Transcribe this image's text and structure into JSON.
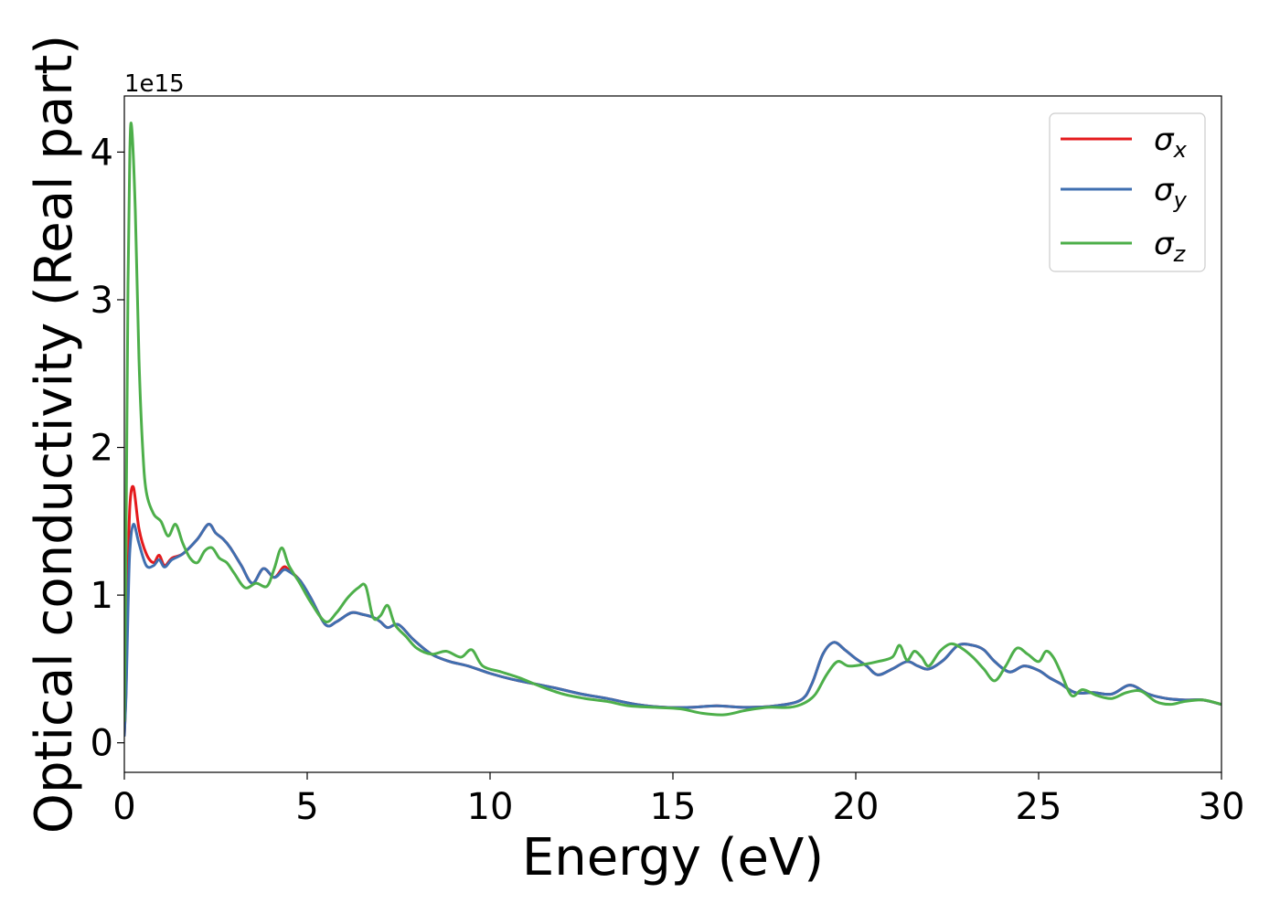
{
  "chart_data": {
    "type": "line",
    "xlabel": "Energy (eV)",
    "ylabel": "Optical conductivity (Real part)",
    "y_offset_label": "1e15",
    "y_scale": 1000000000000000.0,
    "xlim": [
      0,
      30
    ],
    "ylim": [
      -0.2,
      4.38
    ],
    "x_ticks": [
      0,
      5,
      10,
      15,
      20,
      25,
      30
    ],
    "y_ticks": [
      0,
      1,
      2,
      3,
      4
    ],
    "grid": false,
    "legend_position": "top-right",
    "series": [
      {
        "name": "σx",
        "symbol": "σ",
        "subscript": "x",
        "color": "#e41a1c",
        "x": [
          0,
          0.05,
          0.1,
          0.15,
          0.25,
          0.4,
          0.6,
          0.8,
          0.95,
          1.1,
          1.3,
          1.6,
          2.0,
          2.3,
          2.5,
          2.7,
          2.9,
          3.2,
          3.5,
          3.8,
          4.1,
          4.35,
          4.5,
          4.8,
          5.1,
          5.5,
          5.8,
          6.2,
          6.5,
          6.8,
          7.0,
          7.2,
          7.5,
          7.9,
          8.4,
          8.9,
          9.4,
          10,
          10.6,
          11.2,
          11.8,
          12.5,
          13.2,
          14.0,
          14.8,
          15.5,
          16.2,
          17.0,
          17.8,
          18.5,
          18.8,
          19.1,
          19.4,
          19.7,
          20.0,
          20.3,
          20.6,
          21.0,
          21.4,
          21.7,
          22.0,
          22.4,
          22.8,
          23.2,
          23.5,
          23.8,
          24.2,
          24.6,
          25.0,
          25.3,
          25.6,
          26.0,
          26.5,
          27.0,
          27.5,
          28.0,
          28.5,
          29.0,
          29.5,
          30.0
        ],
        "y": [
          0.05,
          0.4,
          1.1,
          1.6,
          1.73,
          1.45,
          1.28,
          1.22,
          1.27,
          1.2,
          1.25,
          1.28,
          1.38,
          1.48,
          1.42,
          1.38,
          1.32,
          1.2,
          1.08,
          1.18,
          1.12,
          1.19,
          1.17,
          1.1,
          0.98,
          0.8,
          0.82,
          0.88,
          0.87,
          0.85,
          0.82,
          0.78,
          0.8,
          0.7,
          0.6,
          0.55,
          0.52,
          0.47,
          0.43,
          0.4,
          0.37,
          0.33,
          0.3,
          0.26,
          0.24,
          0.24,
          0.25,
          0.24,
          0.25,
          0.29,
          0.4,
          0.6,
          0.68,
          0.63,
          0.57,
          0.52,
          0.46,
          0.5,
          0.55,
          0.52,
          0.5,
          0.56,
          0.66,
          0.66,
          0.63,
          0.55,
          0.48,
          0.52,
          0.49,
          0.44,
          0.4,
          0.34,
          0.34,
          0.33,
          0.39,
          0.33,
          0.3,
          0.29,
          0.29,
          0.26
        ]
      },
      {
        "name": "σy",
        "symbol": "σ",
        "subscript": "y",
        "color": "#3f6fb0",
        "x": [
          0,
          0.05,
          0.1,
          0.15,
          0.25,
          0.4,
          0.6,
          0.8,
          0.95,
          1.1,
          1.3,
          1.6,
          2.0,
          2.3,
          2.5,
          2.7,
          2.9,
          3.2,
          3.5,
          3.8,
          4.1,
          4.35,
          4.5,
          4.8,
          5.1,
          5.5,
          5.8,
          6.2,
          6.5,
          6.8,
          7.0,
          7.2,
          7.5,
          7.9,
          8.4,
          8.9,
          9.4,
          10,
          10.6,
          11.2,
          11.8,
          12.5,
          13.2,
          14.0,
          14.8,
          15.5,
          16.2,
          17.0,
          17.8,
          18.5,
          18.8,
          19.1,
          19.4,
          19.7,
          20.0,
          20.3,
          20.6,
          21.0,
          21.4,
          21.7,
          22.0,
          22.4,
          22.8,
          23.2,
          23.5,
          23.8,
          24.2,
          24.6,
          25.0,
          25.3,
          25.6,
          26.0,
          26.5,
          27.0,
          27.5,
          28.0,
          28.5,
          29.0,
          29.5,
          30.0
        ],
        "y": [
          0.05,
          0.35,
          0.9,
          1.3,
          1.48,
          1.35,
          1.2,
          1.2,
          1.24,
          1.19,
          1.24,
          1.28,
          1.38,
          1.48,
          1.42,
          1.38,
          1.32,
          1.2,
          1.08,
          1.18,
          1.12,
          1.17,
          1.16,
          1.1,
          0.98,
          0.8,
          0.82,
          0.88,
          0.87,
          0.85,
          0.82,
          0.78,
          0.8,
          0.7,
          0.6,
          0.55,
          0.52,
          0.47,
          0.43,
          0.4,
          0.37,
          0.33,
          0.3,
          0.26,
          0.24,
          0.24,
          0.25,
          0.24,
          0.25,
          0.29,
          0.4,
          0.6,
          0.68,
          0.63,
          0.57,
          0.52,
          0.46,
          0.5,
          0.55,
          0.52,
          0.5,
          0.56,
          0.66,
          0.66,
          0.63,
          0.55,
          0.48,
          0.52,
          0.49,
          0.44,
          0.4,
          0.34,
          0.34,
          0.33,
          0.39,
          0.33,
          0.3,
          0.29,
          0.29,
          0.26
        ]
      },
      {
        "name": "σz",
        "symbol": "σ",
        "subscript": "z",
        "color": "#4daf4a",
        "x": [
          0,
          0.05,
          0.1,
          0.15,
          0.2,
          0.3,
          0.4,
          0.5,
          0.6,
          0.8,
          1.0,
          1.2,
          1.4,
          1.6,
          1.8,
          2.0,
          2.2,
          2.4,
          2.6,
          2.8,
          3.0,
          3.3,
          3.6,
          3.9,
          4.1,
          4.3,
          4.5,
          4.8,
          5.1,
          5.5,
          5.8,
          6.1,
          6.4,
          6.6,
          6.8,
          7.0,
          7.2,
          7.4,
          7.7,
          8.0,
          8.4,
          8.8,
          9.2,
          9.5,
          9.8,
          10.3,
          10.8,
          11.4,
          12.0,
          12.6,
          13.2,
          13.8,
          14.5,
          15.2,
          15.8,
          16.4,
          17.0,
          17.6,
          18.2,
          18.6,
          18.9,
          19.2,
          19.5,
          19.8,
          20.2,
          20.6,
          21.0,
          21.2,
          21.4,
          21.6,
          21.8,
          22.0,
          22.3,
          22.6,
          22.9,
          23.2,
          23.5,
          23.8,
          24.1,
          24.4,
          24.7,
          25.0,
          25.2,
          25.4,
          25.6,
          25.9,
          26.2,
          26.6,
          27.0,
          27.4,
          27.8,
          28.2,
          28.6,
          29.0,
          29.5,
          30.0
        ],
        "y": [
          0.15,
          1.5,
          3.1,
          4.0,
          4.17,
          3.6,
          2.6,
          2.0,
          1.7,
          1.55,
          1.5,
          1.4,
          1.48,
          1.35,
          1.25,
          1.22,
          1.3,
          1.32,
          1.25,
          1.22,
          1.15,
          1.05,
          1.08,
          1.06,
          1.18,
          1.32,
          1.2,
          1.08,
          0.95,
          0.82,
          0.88,
          0.98,
          1.05,
          1.06,
          0.85,
          0.86,
          0.93,
          0.8,
          0.72,
          0.64,
          0.6,
          0.62,
          0.58,
          0.63,
          0.52,
          0.48,
          0.44,
          0.38,
          0.33,
          0.3,
          0.28,
          0.25,
          0.24,
          0.23,
          0.2,
          0.19,
          0.22,
          0.24,
          0.24,
          0.27,
          0.33,
          0.46,
          0.55,
          0.52,
          0.53,
          0.55,
          0.58,
          0.66,
          0.56,
          0.62,
          0.58,
          0.52,
          0.62,
          0.67,
          0.64,
          0.58,
          0.5,
          0.42,
          0.52,
          0.64,
          0.6,
          0.55,
          0.62,
          0.58,
          0.48,
          0.32,
          0.36,
          0.32,
          0.3,
          0.34,
          0.35,
          0.28,
          0.26,
          0.28,
          0.29,
          0.26
        ]
      }
    ]
  }
}
